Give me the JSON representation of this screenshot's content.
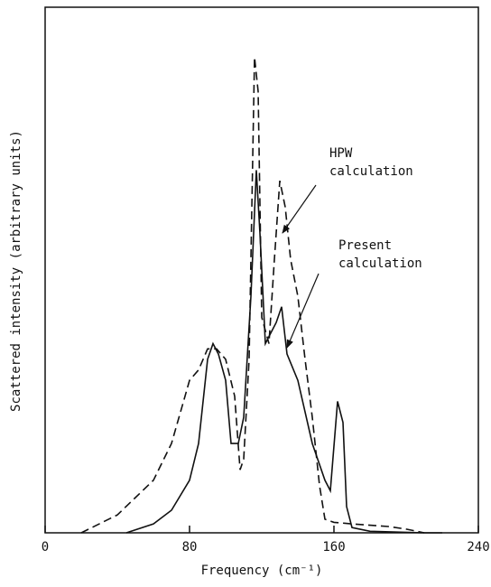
{
  "chart_data": {
    "type": "line",
    "x_label": "Frequency (cm⁻¹)",
    "y_label": "Scattered intensity (arbitrary units)",
    "xlim": [
      0,
      240
    ],
    "xticks": [
      0,
      80,
      160,
      240
    ],
    "ylim": [
      0,
      100
    ],
    "yticks": [],
    "series": [
      {
        "color": "#111",
        "dash": "9,5",
        "x": [
          20,
          40,
          60,
          70,
          80,
          85,
          90,
          95,
          100,
          105,
          108,
          110,
          113,
          116,
          118,
          120,
          124,
          127,
          130,
          133,
          136,
          140,
          144,
          148,
          152,
          155,
          160,
          170,
          190,
          200,
          210
        ],
        "values": [
          0,
          3.4,
          10,
          17,
          29,
          31,
          35,
          35,
          33,
          26,
          12,
          14,
          33,
          90.5,
          84,
          41,
          36,
          52,
          67,
          62,
          52,
          45,
          33,
          22,
          9,
          2.6,
          2,
          1.7,
          1.2,
          0.7,
          0
        ]
      },
      {
        "color": "#111",
        "dash": "none",
        "x": [
          45,
          60,
          70,
          80,
          85,
          90,
          93,
          96,
          100,
          103,
          107,
          110,
          114,
          117,
          119,
          122,
          125,
          128,
          131,
          134,
          140,
          148,
          155,
          158,
          162,
          165,
          167,
          170,
          180,
          210,
          220
        ],
        "values": [
          0,
          1.7,
          4.3,
          10,
          17,
          33,
          36,
          34,
          29,
          17,
          17,
          22,
          45,
          69,
          57,
          36,
          38,
          40,
          43,
          34,
          29,
          17,
          10,
          8,
          25,
          21,
          5,
          1,
          0.3,
          0,
          0
        ]
      }
    ],
    "annotations": [
      {
        "lines": [
          "HPW",
          "calculation"
        ]
      },
      {
        "lines": [
          "Present",
          "calculation"
        ]
      }
    ]
  }
}
